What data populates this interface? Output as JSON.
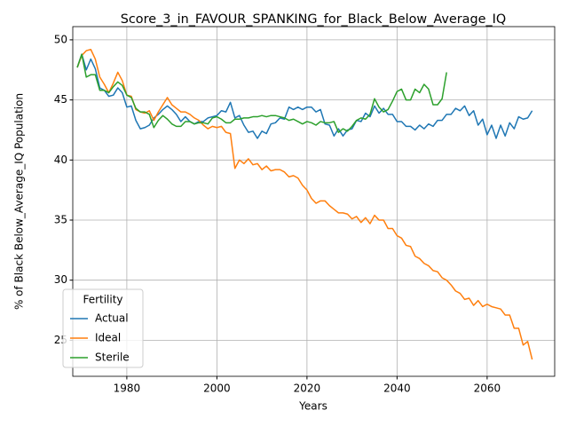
{
  "chart_data": {
    "type": "line",
    "title": "Score_3_in_FAVOUR_SPANKING_for_Black_Below_Average_IQ",
    "x_label": "Years",
    "y_label": "% of Black Below_Average_IQ Population",
    "legend_title": "Fertility",
    "legend": "lower left",
    "grid": true,
    "x": [
      1969,
      1970,
      1971,
      1972,
      1973,
      1974,
      1975,
      1976,
      1977,
      1978,
      1979,
      1980,
      1981,
      1982,
      1983,
      1984,
      1985,
      1986,
      1987,
      1988,
      1989,
      1990,
      1991,
      1992,
      1993,
      1994,
      1995,
      1996,
      1997,
      1998,
      1999,
      2000,
      2001,
      2002,
      2003,
      2004,
      2005,
      2006,
      2007,
      2008,
      2009,
      2010,
      2011,
      2012,
      2013,
      2014,
      2015,
      2016,
      2017,
      2018,
      2019,
      2020,
      2021,
      2022,
      2023,
      2024,
      2025,
      2026,
      2027,
      2028,
      2029,
      2030,
      2031,
      2032,
      2033,
      2034,
      2035,
      2036,
      2037,
      2038,
      2039,
      2040,
      2041,
      2042,
      2043,
      2044,
      2045,
      2046,
      2047,
      2048,
      2049,
      2050,
      2051,
      2052,
      2053,
      2054,
      2055,
      2056,
      2057,
      2058,
      2059,
      2060,
      2061,
      2062,
      2063,
      2064,
      2065,
      2066,
      2067,
      2068,
      2069,
      2070
    ],
    "series": [
      {
        "name": "Actual",
        "color": "#1f77b4",
        "values": [
          47.7,
          48.8,
          47.5,
          48.4,
          47.6,
          46.0,
          45.8,
          45.3,
          45.4,
          46.0,
          45.6,
          44.4,
          44.5,
          43.3,
          42.6,
          42.7,
          42.9,
          43.5,
          43.8,
          44.2,
          44.5,
          44.2,
          43.8,
          43.2,
          43.6,
          43.2,
          43.0,
          43.2,
          43.2,
          43.5,
          43.6,
          43.7,
          44.1,
          44.0,
          44.8,
          43.5,
          43.7,
          42.9,
          42.3,
          42.4,
          41.8,
          42.4,
          42.2,
          43.0,
          43.1,
          43.5,
          43.4,
          44.4,
          44.2,
          44.4,
          44.2,
          44.4,
          44.4,
          44.0,
          44.2,
          43.0,
          42.9,
          42.0,
          42.6,
          42.0,
          42.5,
          42.6,
          43.3,
          43.2,
          43.9,
          43.6,
          44.5,
          43.9,
          44.3,
          43.8,
          43.8,
          43.2,
          43.2,
          42.8,
          42.8,
          42.5,
          42.9,
          42.6,
          43.0,
          42.8,
          43.3,
          43.3,
          43.8,
          43.8,
          44.3,
          44.1,
          44.5,
          43.7,
          44.1,
          42.9,
          43.4,
          42.1,
          42.9,
          41.8,
          42.9,
          42.0,
          43.1,
          42.6,
          43.6,
          43.4,
          43.5,
          44.1
        ]
      },
      {
        "name": "Ideal",
        "color": "#ff7f0e",
        "values": [
          47.7,
          48.7,
          49.1,
          49.2,
          48.4,
          46.9,
          46.3,
          45.6,
          46.4,
          47.3,
          46.6,
          45.4,
          45.3,
          44.2,
          44.0,
          43.9,
          44.1,
          43.3,
          44.0,
          44.6,
          45.2,
          44.6,
          44.3,
          44.0,
          44.0,
          43.8,
          43.5,
          43.3,
          42.9,
          42.6,
          42.8,
          42.7,
          42.8,
          42.3,
          42.2,
          39.3,
          40.0,
          39.7,
          40.1,
          39.6,
          39.7,
          39.2,
          39.5,
          39.1,
          39.2,
          39.2,
          39.0,
          38.6,
          38.7,
          38.5,
          37.9,
          37.5,
          36.8,
          36.4,
          36.6,
          36.6,
          36.2,
          35.9,
          35.6,
          35.6,
          35.5,
          35.1,
          35.3,
          34.8,
          35.2,
          34.7,
          35.4,
          35.0,
          35.0,
          34.3,
          34.3,
          33.7,
          33.5,
          32.9,
          32.8,
          32.0,
          31.8,
          31.4,
          31.2,
          30.8,
          30.7,
          30.2,
          30.0,
          29.6,
          29.1,
          28.9,
          28.4,
          28.5,
          27.9,
          28.3,
          27.8,
          28.0,
          27.8,
          27.7,
          27.6,
          27.1,
          27.1,
          26.0,
          26.0,
          24.6,
          24.9,
          23.4
        ]
      },
      {
        "name": "Sterile",
        "color": "#2ca02c",
        "values": [
          47.7,
          48.8,
          46.9,
          47.1,
          47.1,
          45.8,
          45.8,
          45.6,
          46.1,
          46.5,
          46.2,
          45.4,
          45.2,
          44.3,
          44.0,
          44.0,
          43.8,
          42.7,
          43.3,
          43.7,
          43.4,
          43.0,
          42.8,
          42.8,
          43.2,
          43.2,
          43.0,
          43.1,
          43.1,
          43.0,
          43.5,
          43.6,
          43.4,
          43.1,
          43.1,
          43.4,
          43.4,
          43.5,
          43.5,
          43.6,
          43.6,
          43.7,
          43.6,
          43.7,
          43.7,
          43.6,
          43.5,
          43.3,
          43.4,
          43.2,
          43.0,
          43.2,
          43.1,
          42.9,
          43.2,
          43.1,
          43.1,
          43.2,
          42.3,
          42.6,
          42.4,
          42.8,
          43.3,
          43.5,
          43.4,
          43.8,
          45.1,
          44.4,
          44.0,
          44.2,
          44.9,
          45.7,
          45.9,
          45.0,
          45.0,
          45.9,
          45.6,
          46.3,
          45.9,
          44.6,
          44.6,
          45.1,
          47.3,
          null,
          null,
          null,
          null,
          null,
          null,
          null,
          null,
          null,
          null,
          null,
          null,
          null,
          null,
          null,
          null,
          null,
          null,
          null
        ]
      }
    ],
    "xlim": [
      1968,
      2075
    ],
    "ylim": [
      22,
      51.1
    ],
    "xticks": [
      1980,
      2000,
      2020,
      2040,
      2060
    ],
    "yticks": [
      25,
      30,
      35,
      40,
      45,
      50
    ]
  }
}
